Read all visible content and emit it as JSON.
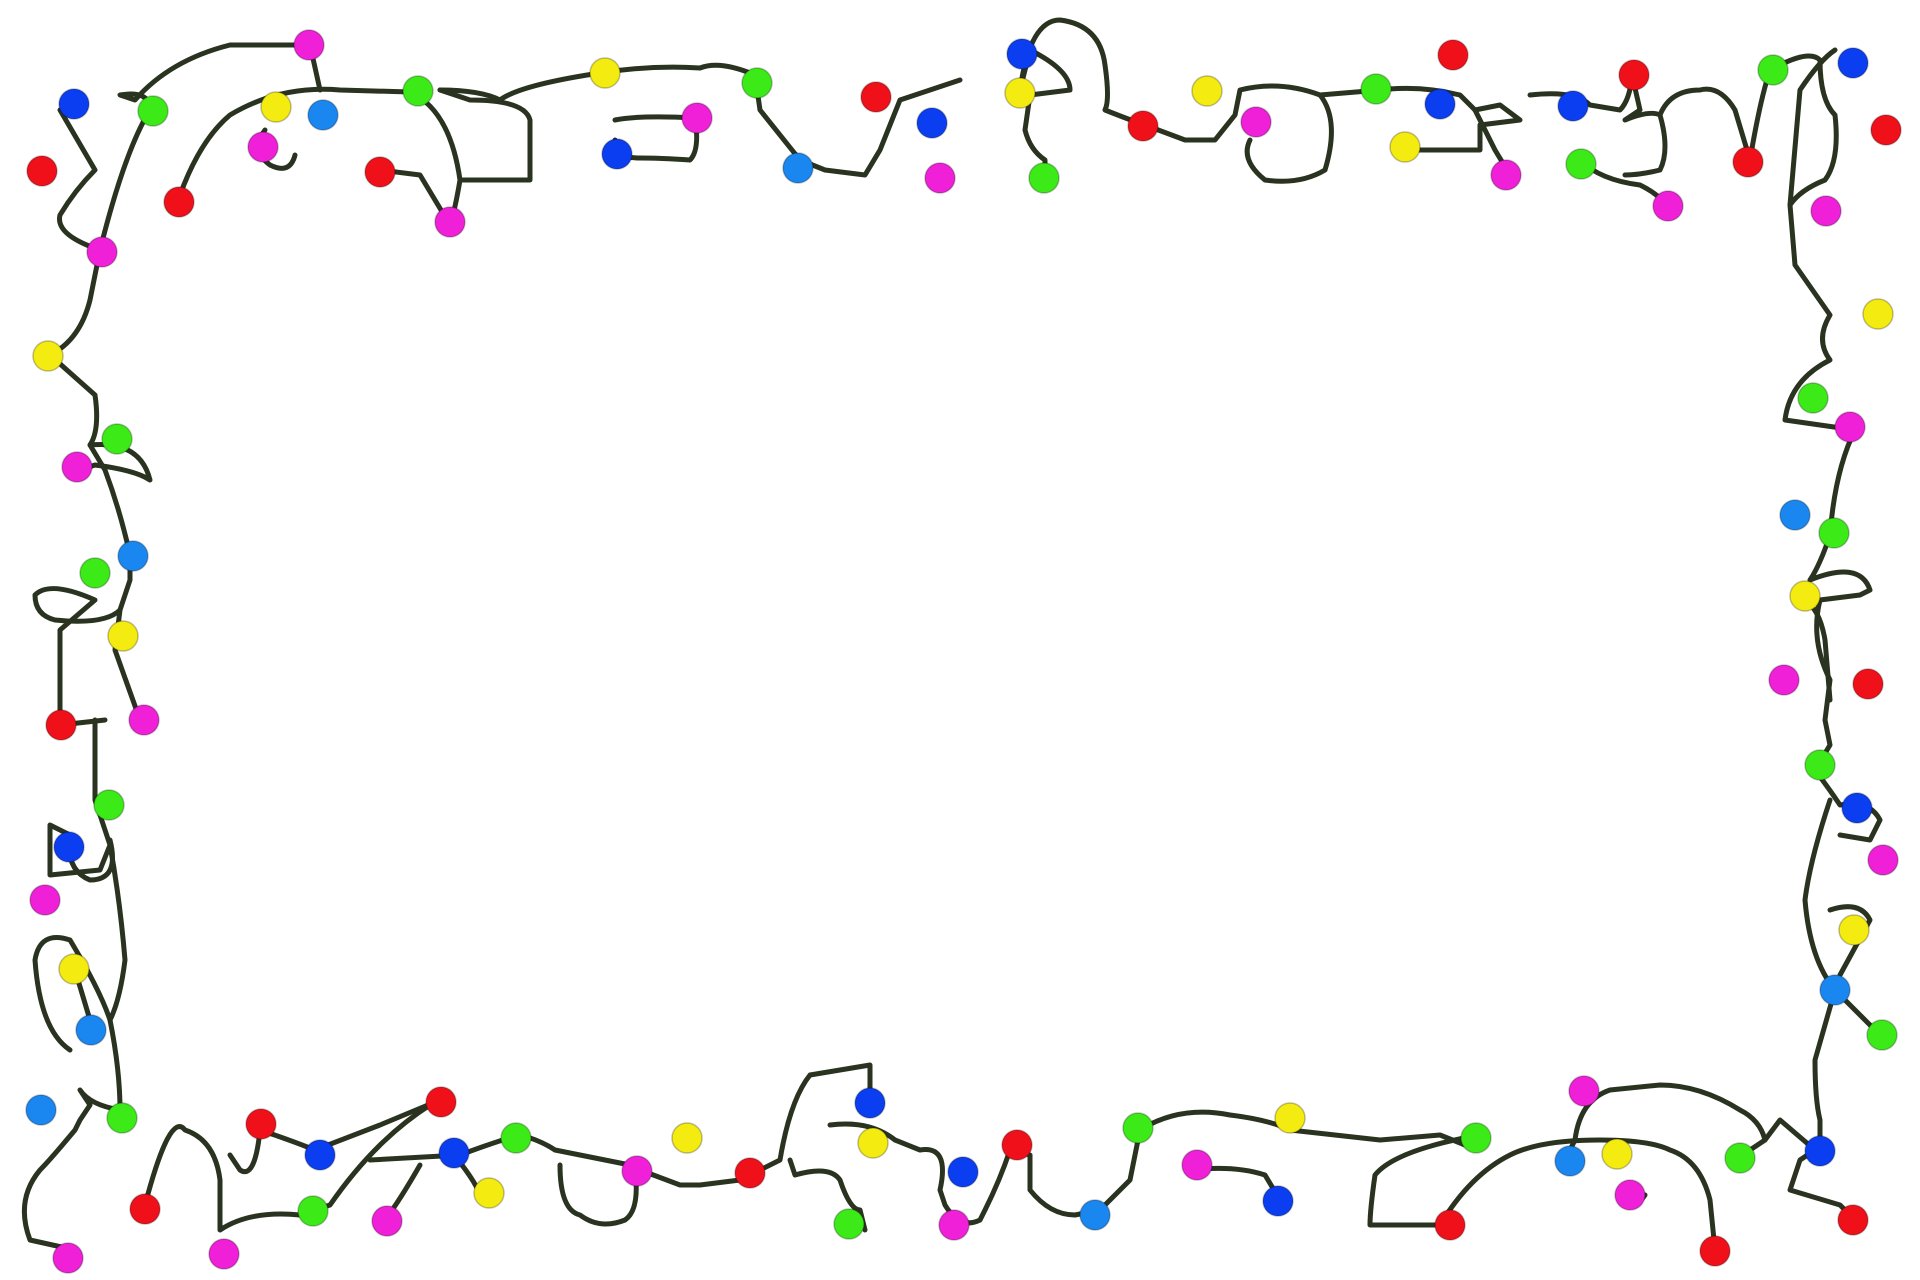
{
  "palette": {
    "wire": "#2a3320",
    "background": "#ffffff",
    "red": "#f0101a",
    "magenta": "#f020d8",
    "yellow": "#f4ec10",
    "green": "#3cea18",
    "blue": "#0a3ef0",
    "sky_blue": "#1a86f0"
  },
  "decoration": {
    "description_kind": "string-of-christmas-lights-border",
    "empty_center": true
  }
}
